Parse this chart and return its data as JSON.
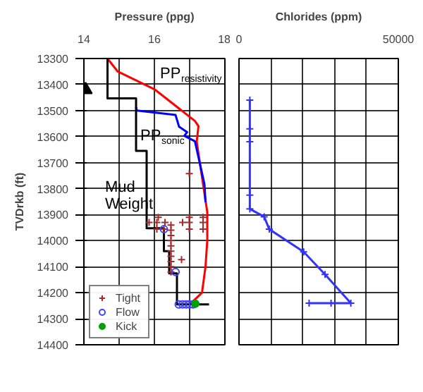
{
  "chart_data": [
    {
      "type": "line",
      "title": "Pressure (ppg)",
      "ylabel": "TVDrkb (ft)",
      "xlim": [
        14,
        18
      ],
      "xticks": [
        14,
        {
          "value": 15,
          "label": null
        },
        16,
        {
          "value": 17,
          "label": null
        },
        18
      ],
      "ylim": [
        14400,
        13300
      ],
      "yticks": [
        13300,
        13400,
        13500,
        13600,
        13700,
        13800,
        13900,
        14000,
        14100,
        14200,
        14300,
        14400
      ],
      "grid": true,
      "legend": "bottom left",
      "series": [
        {
          "type": "line",
          "color": "#ff0000",
          "x": [
            14.67,
            14.96,
            16.0,
            17.15,
            17.25,
            17.2,
            17.4,
            17.5,
            17.5,
            17.45,
            17.35,
            17.0
          ],
          "values": [
            13300,
            13350,
            13418,
            13540,
            13560,
            13620,
            13800,
            13890,
            14000,
            14100,
            14200,
            14245
          ]
        },
        {
          "type": "line",
          "color": "#0000ff",
          "x": [
            15.48,
            15.5,
            16.6,
            16.7,
            16.93,
            16.85,
            17.15,
            17.42,
            17.45
          ],
          "values": [
            13487,
            13500,
            13517,
            13562,
            13583,
            13597,
            13618,
            13783,
            13852
          ]
        },
        {
          "type": "line",
          "color": "#000000",
          "x": [
            14.67,
            14.67,
            15.48,
            15.48,
            15.78,
            15.78,
            16.27,
            16.27,
            16.42,
            16.42,
            16.64,
            16.64,
            17.55
          ],
          "values": [
            13300,
            13453,
            13453,
            13655,
            13655,
            13952,
            13952,
            14040,
            14040,
            14126,
            14126,
            14245,
            14245
          ]
        },
        {
          "type": "scatter",
          "color": "#000000",
          "marker": "triangle",
          "x": [
            14.05
          ],
          "values": [
            13420
          ]
        },
        {
          "type": "scatter",
          "name": "Tight",
          "color": "#a52a2a",
          "marker": "cross",
          "x": [
            16.99,
            16.11,
            16.99,
            17.38,
            15.85,
            16.07,
            16.3,
            16.8,
            16.99,
            17.38,
            16.07,
            16.27,
            16.99,
            17.38,
            16.47,
            16.47,
            16.47,
            16.47,
            16.47,
            16.47,
            16.47,
            16.47,
            16.47,
            16.47,
            16.77
          ],
          "values": [
            13742,
            13910,
            13910,
            13910,
            13930,
            13930,
            13930,
            13930,
            13930,
            13930,
            13956,
            13956,
            13956,
            13956,
            13940,
            13960,
            13980,
            14000,
            14020,
            14040,
            14060,
            14080,
            14100,
            14120,
            14073
          ]
        },
        {
          "type": "scatter",
          "name": "Flow",
          "color": "#4040ff",
          "marker": "circle",
          "x": [
            16.27,
            16.6,
            16.69,
            16.8,
            16.9,
            17.0,
            17.1
          ],
          "values": [
            13956,
            14120,
            14245,
            14245,
            14245,
            14245,
            14245
          ]
        },
        {
          "type": "scatter",
          "name": "Kick",
          "color": "#00a000",
          "marker": "circle",
          "x": [
            17.16
          ],
          "values": [
            14242
          ]
        }
      ],
      "annotations": [
        "PP$_{resistivity}$",
        "PP$_{sonic}$",
        "Mud Weight"
      ]
    },
    {
      "type": "line",
      "title": "Chlorides (ppm)",
      "xlim": [
        0,
        50000
      ],
      "xticks": [
        0,
        {
          "value": 10000,
          "label": null
        },
        {
          "value": 20000,
          "label": null
        },
        {
          "value": 30000,
          "label": null
        },
        {
          "value": 40000,
          "label": null
        },
        50000
      ],
      "ylim": [
        14400,
        13300
      ],
      "yticks": [
        13300,
        13400,
        13500,
        13600,
        13700,
        13800,
        13900,
        14000,
        14100,
        14200,
        14300,
        14400
      ],
      "grid": true,
      "tick_labels": "x",
      "marker": "cross",
      "series": [
        {
          "color": "#3333ff",
          "x": [
            3400,
            3400,
            3400,
            3400,
            3400,
            7900,
            9500,
            20300,
            27000,
            35100,
            28900,
            22000
          ],
          "values": [
            13460,
            13570,
            13620,
            13825,
            13878,
            13908,
            13956,
            14043,
            14130,
            14240,
            14240,
            14240
          ]
        }
      ]
    }
  ]
}
